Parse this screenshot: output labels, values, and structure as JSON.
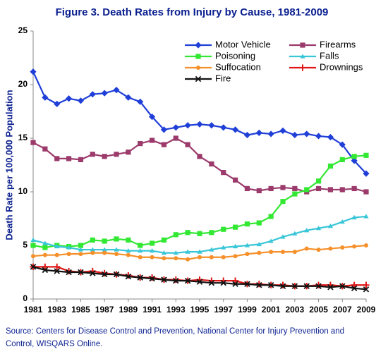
{
  "chart_data": {
    "type": "line",
    "title": "Figure 3.  Death Rates from Injury by Cause, 1981-2009",
    "y_label": "Death Rate per 100,000 Population",
    "source_lines": [
      "Source: Centers for Disease Control and Prevention, National Center for Injury Prevention and",
      "Control, WISQARS Online."
    ],
    "x": [
      1981,
      1982,
      1983,
      1984,
      1985,
      1986,
      1987,
      1988,
      1989,
      1990,
      1991,
      1992,
      1993,
      1994,
      1995,
      1996,
      1997,
      1998,
      1999,
      2000,
      2001,
      2002,
      2003,
      2004,
      2005,
      2006,
      2007,
      2008,
      2009
    ],
    "xlim": [
      1981,
      2009
    ],
    "xticks": [
      1981,
      1983,
      1985,
      1987,
      1989,
      1991,
      1993,
      1995,
      1997,
      1999,
      2001,
      2003,
      2005,
      2007,
      2009
    ],
    "ylim": [
      0,
      25
    ],
    "yticks": [
      0,
      5,
      10,
      15,
      20,
      25
    ],
    "grid": false,
    "legend": "top-right",
    "series": [
      {
        "name": "Motor Vehicle",
        "color": "#1f3fd8",
        "marker": "diamond",
        "values": [
          21.2,
          18.8,
          18.2,
          18.7,
          18.5,
          19.1,
          19.2,
          19.5,
          18.8,
          18.4,
          17.0,
          15.8,
          16.0,
          16.2,
          16.3,
          16.2,
          16.0,
          15.8,
          15.3,
          15.5,
          15.4,
          15.7,
          15.3,
          15.4,
          15.2,
          15.1,
          14.4,
          12.9,
          11.7
        ]
      },
      {
        "name": "Firearms",
        "color": "#9b3a6b",
        "marker": "square",
        "values": [
          14.6,
          14.0,
          13.1,
          13.1,
          13.0,
          13.5,
          13.3,
          13.5,
          13.7,
          14.5,
          14.8,
          14.4,
          15.0,
          14.4,
          13.3,
          12.6,
          11.8,
          11.1,
          10.3,
          10.1,
          10.3,
          10.4,
          10.3,
          10.0,
          10.3,
          10.2,
          10.2,
          10.3,
          10.0
        ]
      },
      {
        "name": "Poisoning",
        "color": "#33e833",
        "marker": "square",
        "values": [
          5.0,
          4.8,
          5.0,
          4.9,
          5.0,
          5.5,
          5.4,
          5.6,
          5.5,
          5.0,
          5.2,
          5.5,
          6.0,
          6.2,
          6.1,
          6.2,
          6.5,
          6.7,
          7.0,
          7.1,
          7.7,
          9.1,
          9.8,
          10.2,
          11.0,
          12.4,
          13.0,
          13.3,
          13.4
        ]
      },
      {
        "name": "Falls",
        "color": "#39c6d8",
        "marker": "triangle",
        "values": [
          5.5,
          5.2,
          4.9,
          4.8,
          4.6,
          4.6,
          4.6,
          4.6,
          4.5,
          4.5,
          4.5,
          4.3,
          4.3,
          4.4,
          4.4,
          4.6,
          4.8,
          4.9,
          5.0,
          5.1,
          5.4,
          5.8,
          6.1,
          6.4,
          6.6,
          6.8,
          7.2,
          7.6,
          7.7
        ]
      },
      {
        "name": "Suffocation",
        "color": "#f5902a",
        "marker": "circle",
        "values": [
          4.0,
          4.1,
          4.1,
          4.2,
          4.2,
          4.3,
          4.3,
          4.2,
          4.1,
          3.9,
          3.9,
          3.8,
          3.8,
          3.7,
          3.9,
          3.9,
          3.9,
          4.0,
          4.2,
          4.3,
          4.4,
          4.4,
          4.4,
          4.7,
          4.6,
          4.7,
          4.8,
          4.9,
          5.0
        ]
      },
      {
        "name": "Drownings",
        "color": "#e01818",
        "marker": "plus",
        "values": [
          3.0,
          3.0,
          3.0,
          2.6,
          2.5,
          2.6,
          2.4,
          2.3,
          2.2,
          2.0,
          2.0,
          1.8,
          1.8,
          1.7,
          1.8,
          1.7,
          1.7,
          1.7,
          1.4,
          1.4,
          1.3,
          1.3,
          1.2,
          1.2,
          1.3,
          1.3,
          1.2,
          1.3,
          1.3
        ]
      },
      {
        "name": "Fire",
        "color": "#111111",
        "marker": "x",
        "values": [
          3.0,
          2.7,
          2.6,
          2.5,
          2.5,
          2.4,
          2.3,
          2.3,
          2.1,
          2.0,
          1.9,
          1.8,
          1.7,
          1.7,
          1.6,
          1.5,
          1.5,
          1.4,
          1.4,
          1.3,
          1.3,
          1.2,
          1.2,
          1.2,
          1.2,
          1.1,
          1.2,
          1.0,
          0.9
        ]
      }
    ]
  }
}
